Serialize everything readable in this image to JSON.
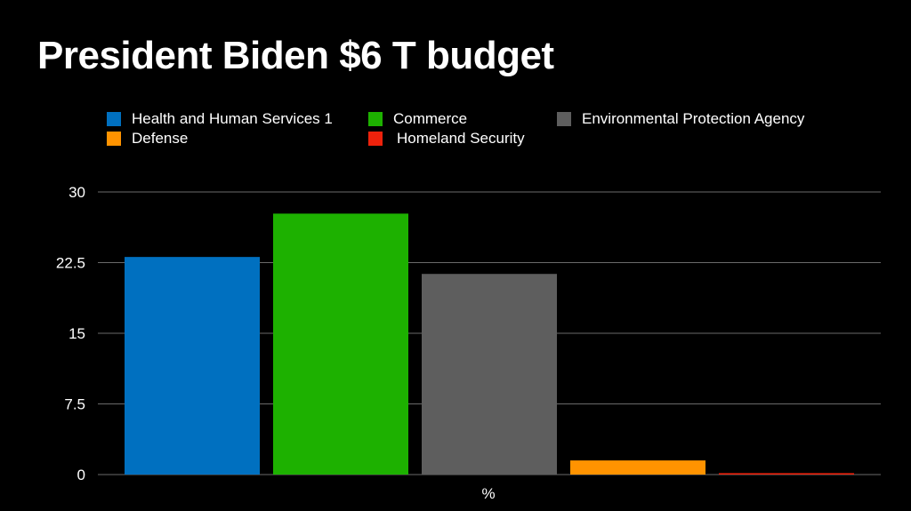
{
  "chart_data": {
    "type": "bar",
    "title": "President Biden $6 T budget",
    "xlabel": "%",
    "ylabel": "",
    "ylim": [
      0,
      30
    ],
    "yticks": [
      "0",
      "7.5",
      "15",
      "22.5",
      "30"
    ],
    "ytick_values": [
      0,
      7.5,
      15,
      22.5,
      30
    ],
    "grid": true,
    "legend_position": "top",
    "categories": [
      "%"
    ],
    "series": [
      {
        "name": "Health and Human Services 1",
        "values": [
          23.1
        ],
        "color": "#0070C0"
      },
      {
        "name": "Commerce",
        "values": [
          27.7
        ],
        "color": "#1DB100"
      },
      {
        "name": "Environmental Protection Agency",
        "values": [
          21.3
        ],
        "color": "#5E5E5E"
      },
      {
        "name": "Defense",
        "values": [
          1.5
        ],
        "color": "#FF9300"
      },
      {
        "name": "Homeland Security",
        "values": [
          0.15
        ],
        "color": "#EE220C"
      }
    ]
  }
}
